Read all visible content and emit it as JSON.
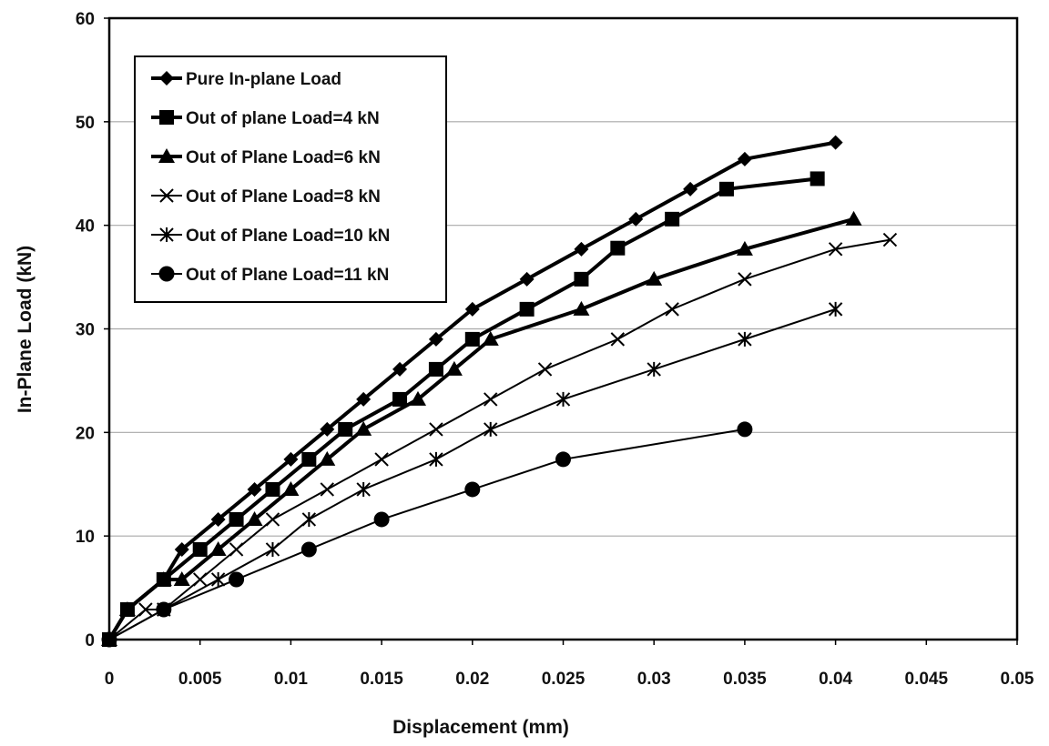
{
  "chart_data": {
    "type": "line",
    "title": "",
    "xlabel": "Displacement (mm)",
    "ylabel": "In-Plane Load (kN)",
    "xlim": [
      0,
      0.05
    ],
    "ylim": [
      0,
      60
    ],
    "x_ticks": [
      "0",
      "0.005",
      "0.01",
      "0.015",
      "0.02",
      "0.025",
      "0.03",
      "0.035",
      "0.04",
      "0.045",
      "0.05"
    ],
    "y_ticks": [
      "0",
      "10",
      "20",
      "30",
      "40",
      "50",
      "60"
    ],
    "grid": "horizontal",
    "legend_position": "top-left",
    "series": [
      {
        "name": "Pure In-plane Load",
        "marker": "diamond",
        "x": [
          0,
          0.001,
          0.003,
          0.004,
          0.006,
          0.008,
          0.01,
          0.012,
          0.014,
          0.016,
          0.018,
          0.02,
          0.023,
          0.026,
          0.029,
          0.032,
          0.035,
          0.04
        ],
        "y": [
          0,
          2.9,
          5.8,
          8.7,
          11.6,
          14.5,
          17.4,
          20.3,
          23.2,
          26.1,
          29.0,
          31.9,
          34.8,
          37.7,
          40.6,
          43.5,
          46.4,
          48.0
        ]
      },
      {
        "name": "Out of plane Load=4 kN",
        "marker": "square",
        "x": [
          0,
          0.001,
          0.003,
          0.005,
          0.007,
          0.009,
          0.011,
          0.013,
          0.016,
          0.018,
          0.02,
          0.023,
          0.026,
          0.028,
          0.031,
          0.034,
          0.039
        ],
        "y": [
          0,
          2.9,
          5.8,
          8.7,
          11.6,
          14.5,
          17.4,
          20.3,
          23.2,
          26.1,
          29.0,
          31.9,
          34.8,
          37.8,
          40.6,
          43.5,
          44.5
        ]
      },
      {
        "name": "Out of Plane Load=6 kN",
        "marker": "triangle",
        "x": [
          0,
          0.001,
          0.003,
          0.004,
          0.006,
          0.008,
          0.01,
          0.012,
          0.014,
          0.017,
          0.019,
          0.021,
          0.026,
          0.03,
          0.035,
          0.041
        ],
        "y": [
          0,
          2.9,
          5.8,
          5.8,
          8.7,
          11.6,
          14.5,
          17.4,
          20.3,
          23.2,
          26.1,
          29.0,
          31.9,
          34.8,
          37.7,
          40.6
        ]
      },
      {
        "name": "Out of Plane Load=8 kN",
        "marker": "x",
        "x": [
          0,
          0.002,
          0.003,
          0.005,
          0.007,
          0.009,
          0.012,
          0.015,
          0.018,
          0.021,
          0.024,
          0.028,
          0.031,
          0.035,
          0.04,
          0.043
        ],
        "y": [
          0,
          2.9,
          2.9,
          5.8,
          8.7,
          11.6,
          14.5,
          17.4,
          20.3,
          23.2,
          26.1,
          29.0,
          31.9,
          34.8,
          37.7,
          38.6
        ]
      },
      {
        "name": "Out of Plane Load=10 kN",
        "marker": "asterisk",
        "x": [
          0,
          0.003,
          0.006,
          0.009,
          0.011,
          0.014,
          0.018,
          0.021,
          0.025,
          0.03,
          0.035,
          0.04
        ],
        "y": [
          0,
          2.9,
          5.8,
          8.7,
          11.6,
          14.5,
          17.4,
          20.3,
          23.2,
          26.1,
          29.0,
          31.9
        ]
      },
      {
        "name": "Out of Plane Load=11 kN",
        "marker": "circle",
        "x": [
          0,
          0.003,
          0.007,
          0.011,
          0.015,
          0.02,
          0.025,
          0.035
        ],
        "y": [
          0,
          2.9,
          5.8,
          8.7,
          11.6,
          14.5,
          17.4,
          20.3
        ]
      }
    ]
  }
}
